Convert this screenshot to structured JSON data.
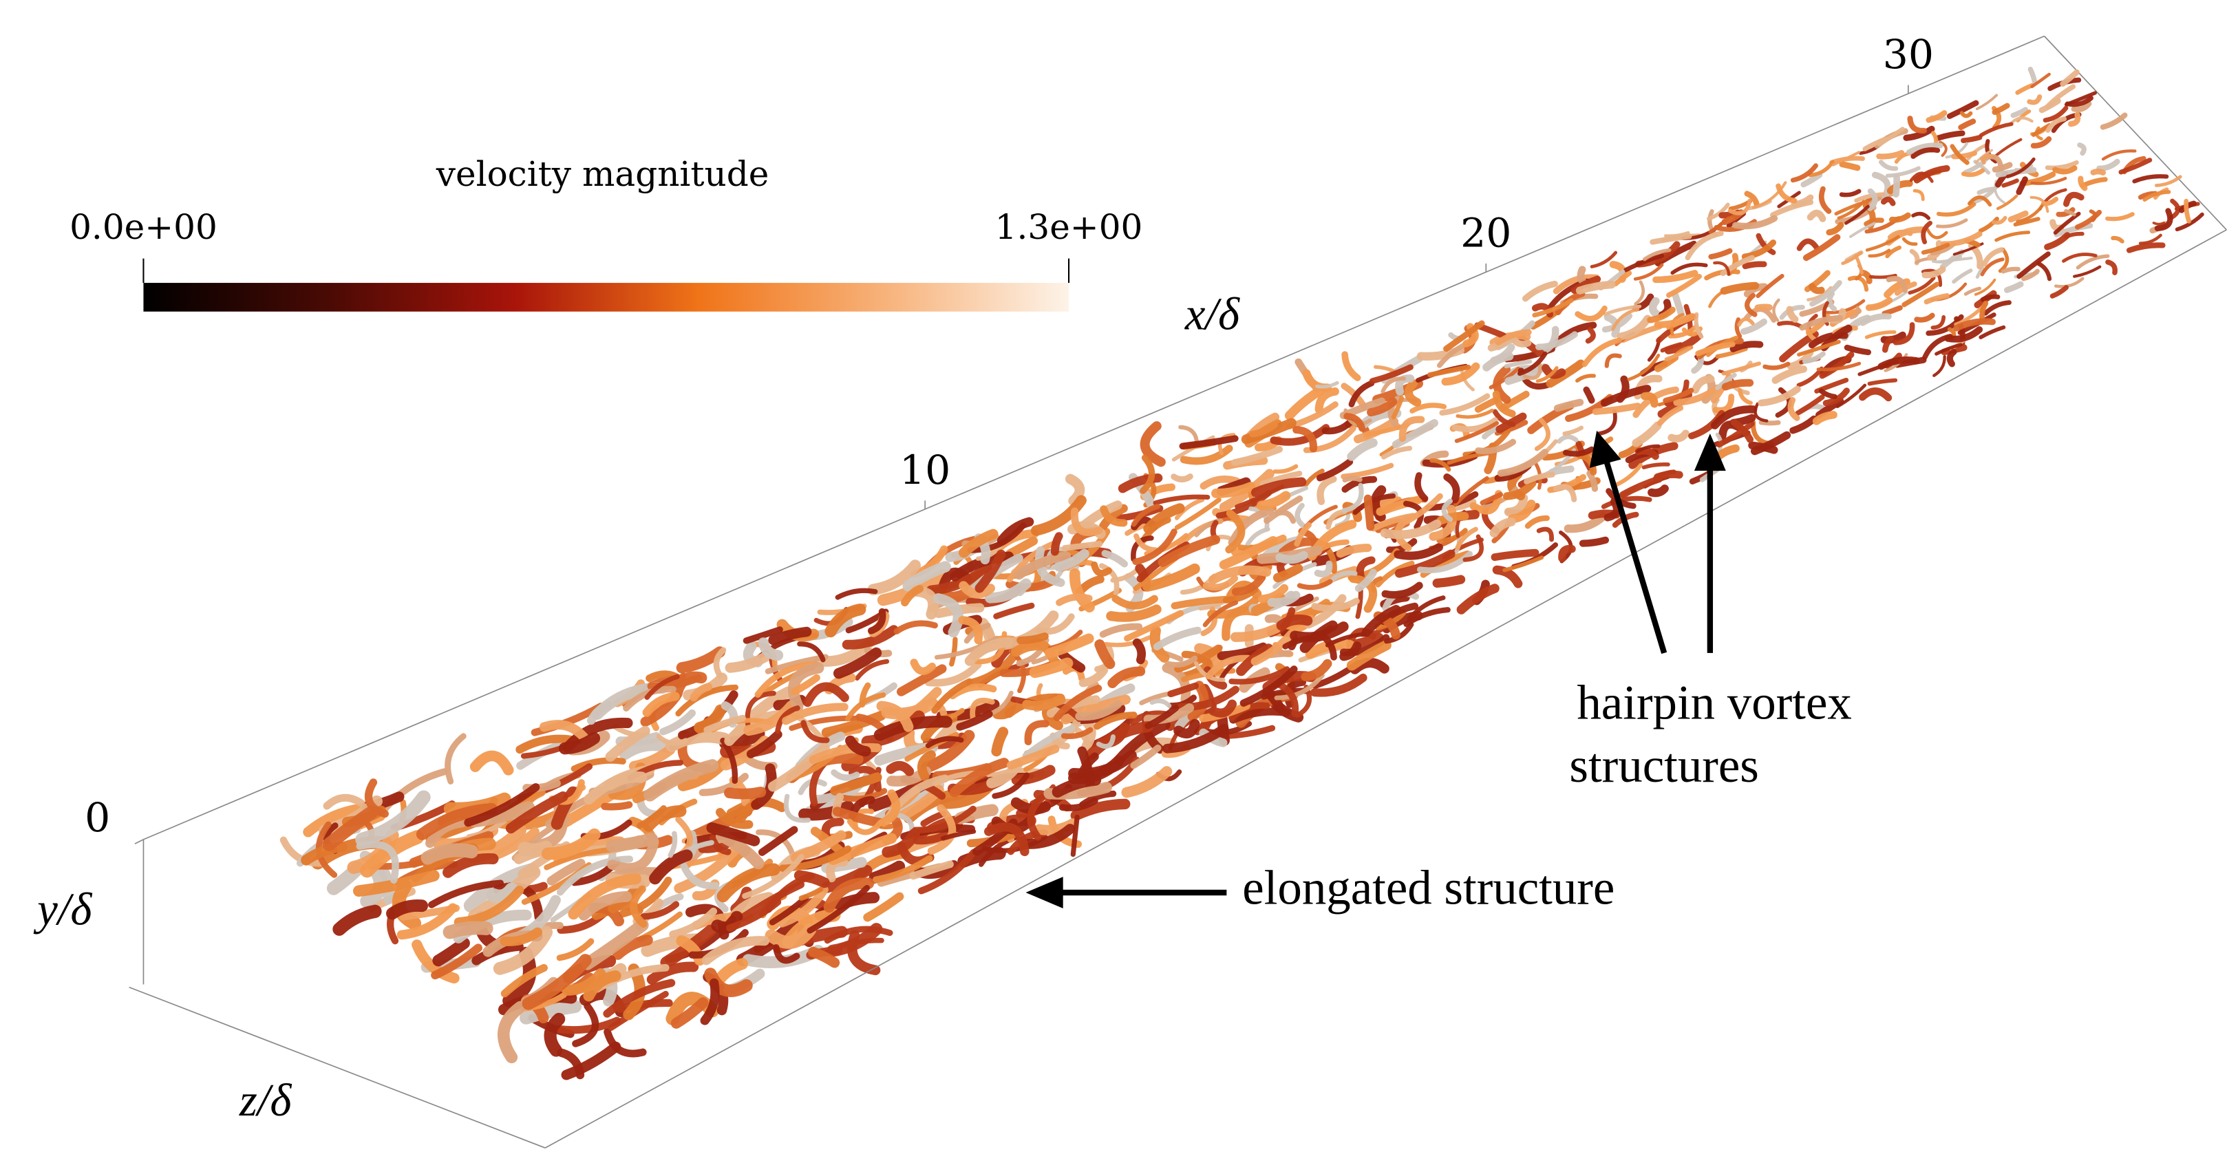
{
  "colorbar": {
    "title": "velocity magnitude",
    "ticks": [
      {
        "value": 0,
        "label": "0.0e+00"
      },
      {
        "value": 1.3,
        "label": "1.3e+00"
      }
    ],
    "colors": [
      "#000000",
      "#4a0a04",
      "#a8140a",
      "#f07418",
      "#f7b27a",
      "#fdf3e8"
    ]
  },
  "axes": {
    "x": {
      "label": "x/δ",
      "ticks": [
        10,
        20,
        30
      ]
    },
    "y": {
      "label": "y/δ",
      "ticks": [
        0
      ]
    },
    "z": {
      "label": "z/δ"
    }
  },
  "annotations": {
    "hairpin": [
      "hairpin vortex",
      "structures"
    ],
    "elongated": "elongated structure"
  }
}
